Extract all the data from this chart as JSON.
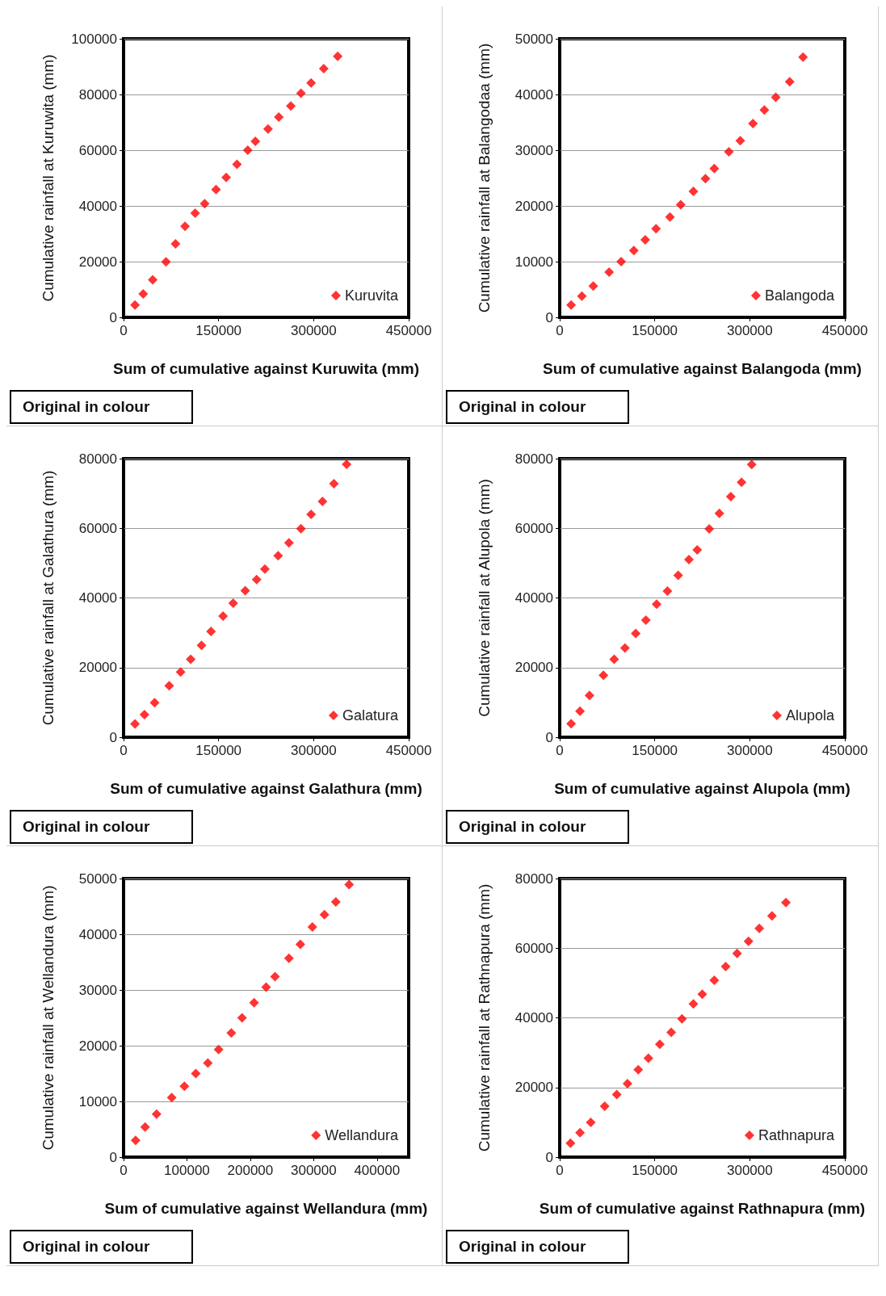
{
  "chart_data": [
    {
      "type": "scatter",
      "xlabel": "Sum of cumulative against Kuruwita (mm)",
      "ylabel": "Cumulative rainfall at Kuruwita (mm)",
      "annotations": [
        "Original in colour"
      ],
      "xlim": [
        0,
        450000
      ],
      "xticks": [
        0,
        150000,
        300000,
        450000
      ],
      "ylim": [
        0,
        100000
      ],
      "yticks": [
        0,
        20000,
        40000,
        60000,
        80000,
        100000
      ],
      "grid": "y",
      "legend": "bottom right",
      "marker": "diamond",
      "series": [
        {
          "name": "Kuruvita",
          "color": "#ff0000",
          "x": [
            18000,
            31000,
            46000,
            67000,
            82000,
            97000,
            113000,
            128000,
            146000,
            162000,
            179000,
            196000,
            208000,
            228000,
            245000,
            264000,
            280000,
            296000,
            316000,
            338000
          ],
          "values": [
            4400,
            8400,
            13500,
            19900,
            26400,
            32700,
            37400,
            40800,
            45900,
            50200,
            54900,
            60000,
            63200,
            67600,
            71900,
            75900,
            80400,
            84100,
            89300,
            93700
          ]
        }
      ]
    },
    {
      "type": "scatter",
      "xlabel": "Sum of cumulative against Balangoda (mm)",
      "ylabel": "Cumulative rainfall at Balangodaa (mm)",
      "annotations": [
        "Original in colour"
      ],
      "xlim": [
        0,
        450000
      ],
      "xticks": [
        0,
        150000,
        300000,
        450000
      ],
      "ylim": [
        0,
        50000
      ],
      "yticks": [
        0,
        10000,
        20000,
        30000,
        40000,
        50000
      ],
      "grid": "y",
      "legend": "bottom right",
      "marker": "diamond",
      "series": [
        {
          "name": "Balangoda",
          "color": "#ff0000",
          "x": [
            18000,
            35000,
            53000,
            78000,
            97000,
            117000,
            135000,
            152000,
            174000,
            191000,
            211000,
            230000,
            244000,
            267000,
            285000,
            305000,
            323000,
            341000,
            363000,
            384000
          ],
          "values": [
            2200,
            3800,
            5600,
            8100,
            10000,
            12000,
            13900,
            15900,
            18000,
            20200,
            22600,
            24900,
            26700,
            29700,
            31700,
            34800,
            37200,
            39500,
            42300,
            46700
          ]
        }
      ]
    },
    {
      "type": "scatter",
      "xlabel": "Sum of cumulative against Galathura (mm)",
      "ylabel": "Cumulative rainfall at Galathura (mm)",
      "annotations": [
        "Original in colour"
      ],
      "xlim": [
        0,
        450000
      ],
      "xticks": [
        0,
        150000,
        300000,
        450000
      ],
      "ylim": [
        0,
        80000
      ],
      "yticks": [
        0,
        20000,
        40000,
        60000,
        80000
      ],
      "grid": "y",
      "legend": "bottom right",
      "marker": "diamond",
      "series": [
        {
          "name": "Galatura",
          "color": "#ff0000",
          "x": [
            18000,
            33000,
            49000,
            72000,
            90000,
            106000,
            123000,
            138000,
            157000,
            173000,
            192000,
            210000,
            223000,
            244000,
            261000,
            280000,
            296000,
            314000,
            332000,
            352000
          ],
          "values": [
            3800,
            6500,
            9900,
            14800,
            18700,
            22400,
            26400,
            30400,
            34800,
            38500,
            42100,
            45300,
            48300,
            52100,
            55800,
            59900,
            64000,
            67700,
            72800,
            78400
          ]
        }
      ]
    },
    {
      "type": "scatter",
      "xlabel": "Sum of cumulative against Alupola (mm)",
      "ylabel": "Cumulative rainfall at Alupola (mm)",
      "annotations": [
        "Original in colour"
      ],
      "xlim": [
        0,
        450000
      ],
      "xticks": [
        0,
        150000,
        300000,
        450000
      ],
      "ylim": [
        0,
        80000
      ],
      "yticks": [
        0,
        20000,
        40000,
        60000,
        80000
      ],
      "grid": "y",
      "legend": "bottom right",
      "marker": "diamond",
      "series": [
        {
          "name": "Alupola",
          "color": "#ff0000",
          "x": [
            18000,
            32000,
            47000,
            69000,
            86000,
            103000,
            120000,
            136000,
            153000,
            170000,
            187000,
            204000,
            217000,
            236000,
            252000,
            270000,
            287000,
            303000
          ],
          "values": [
            3900,
            7500,
            12000,
            17800,
            22400,
            25600,
            29800,
            33600,
            38200,
            42000,
            46500,
            51000,
            53800,
            59800,
            64300,
            69100,
            73200,
            78300
          ]
        }
      ]
    },
    {
      "type": "scatter",
      "xlabel": "Sum of cumulative against Wellandura (mm)",
      "ylabel": "Cumulative rainfall at Wellandura (mm)",
      "annotations": [
        "Original in colour"
      ],
      "xlim": [
        0,
        450000
      ],
      "xticks": [
        0,
        100000,
        200000,
        300000,
        400000
      ],
      "ylim": [
        0,
        50000
      ],
      "yticks": [
        0,
        10000,
        20000,
        30000,
        40000,
        50000
      ],
      "grid": "y",
      "legend": "bottom right",
      "marker": "diamond",
      "series": [
        {
          "name": "Wellandura",
          "color": "#ff0000",
          "x": [
            19000,
            34000,
            52000,
            76000,
            96000,
            114000,
            133000,
            150000,
            170000,
            187000,
            206000,
            225000,
            239000,
            261000,
            279000,
            298000,
            317000,
            335000,
            356000
          ],
          "values": [
            3000,
            5400,
            7700,
            10700,
            12700,
            15000,
            16900,
            19300,
            22300,
            25000,
            27700,
            30500,
            32400,
            35700,
            38200,
            41300,
            43500,
            45800,
            48900
          ]
        }
      ]
    },
    {
      "type": "scatter",
      "xlabel": "Sum of cumulative against Rathnapura (mm)",
      "ylabel": "Cumulative rainfall at Rathnapura (mm)",
      "annotations": [
        "Original in colour"
      ],
      "xlim": [
        0,
        450000
      ],
      "xticks": [
        0,
        150000,
        300000,
        450000
      ],
      "ylim": [
        0,
        80000
      ],
      "yticks": [
        0,
        20000,
        40000,
        60000,
        80000
      ],
      "grid": "y",
      "legend": "bottom right",
      "marker": "diamond",
      "series": [
        {
          "name": "Rathnapura",
          "color": "#ff0000",
          "x": [
            17000,
            32000,
            49000,
            71000,
            90000,
            107000,
            124000,
            140000,
            158000,
            176000,
            193000,
            211000,
            225000,
            244000,
            262000,
            280000,
            298000,
            315000,
            335000,
            357000
          ],
          "values": [
            4000,
            7000,
            10000,
            14600,
            18000,
            21100,
            25100,
            28400,
            32400,
            35800,
            39700,
            44000,
            46800,
            50800,
            54700,
            58500,
            62000,
            65700,
            69300,
            73100
          ]
        }
      ]
    }
  ]
}
